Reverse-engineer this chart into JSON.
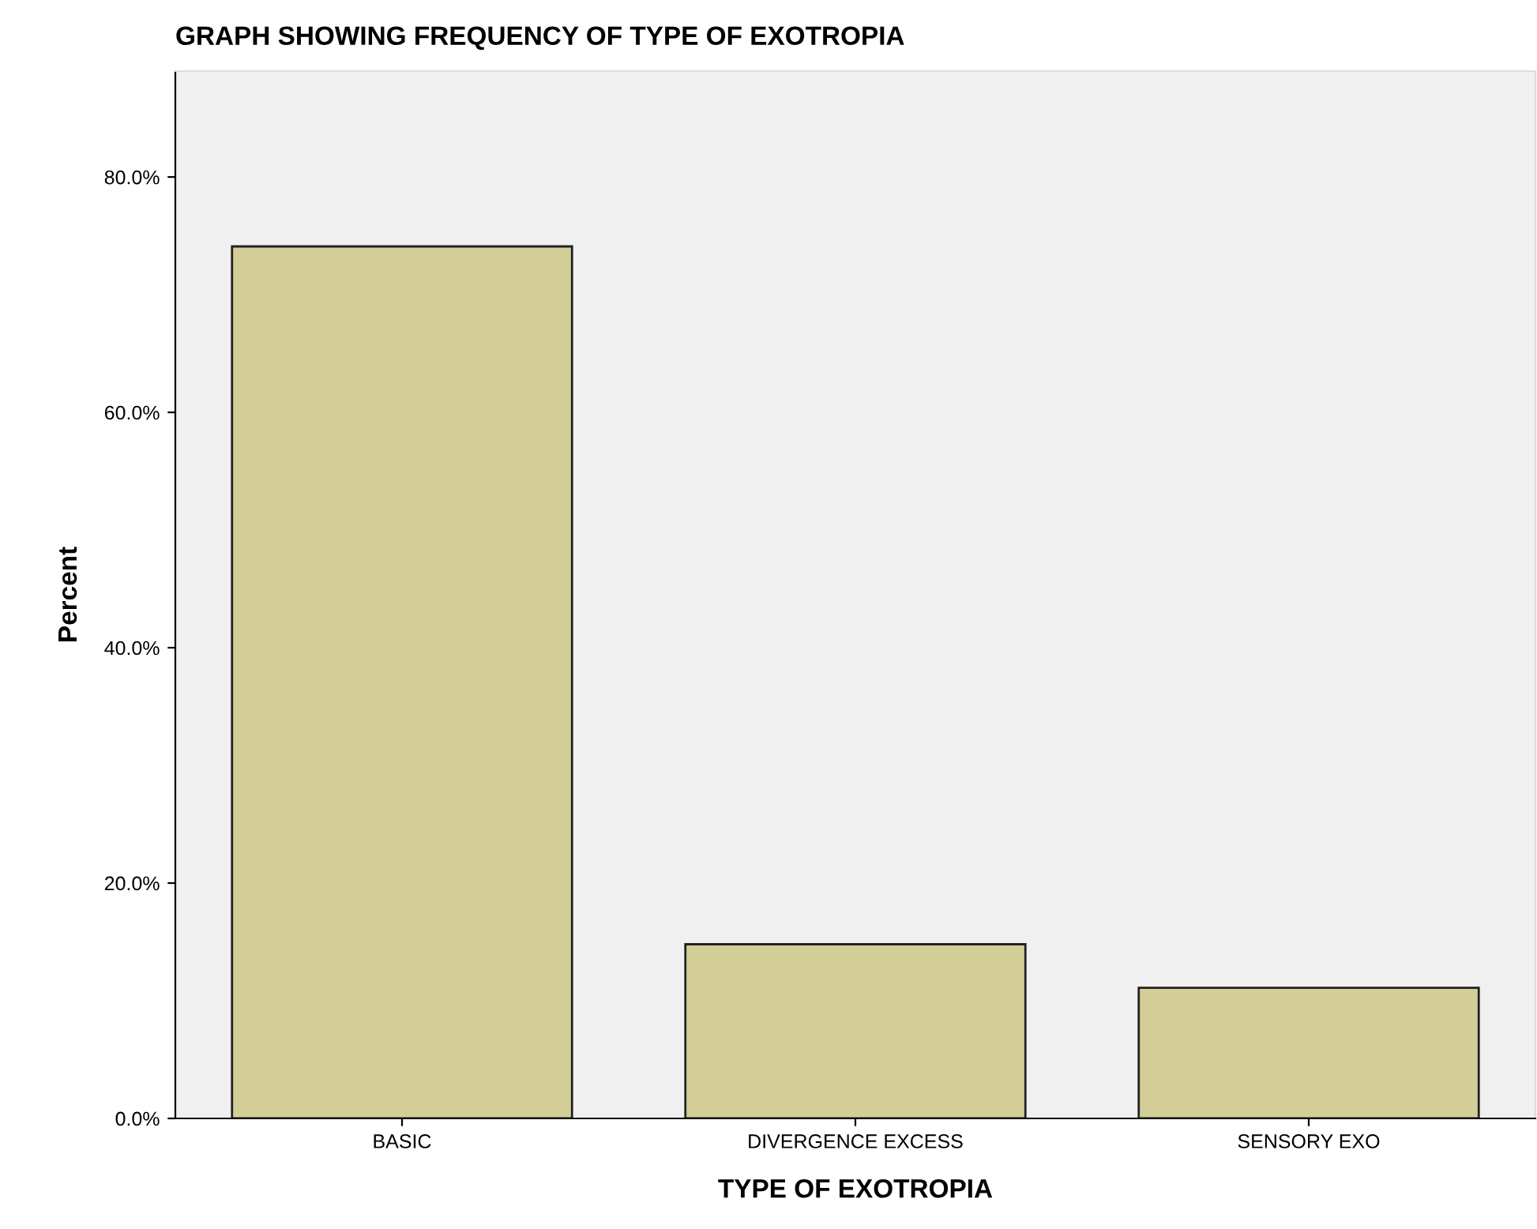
{
  "chart_data": {
    "type": "bar",
    "title": "GRAPH SHOWING FREQUENCY OF TYPE OF EXOTROPIA",
    "xlabel": "TYPE OF EXOTROPIA",
    "ylabel": "Percent",
    "categories": [
      "BASIC",
      "DIVERGENCE EXCESS",
      "SENSORY EXO"
    ],
    "values": [
      74.1,
      14.8,
      11.1
    ],
    "color": "#d3ce97",
    "ylim": [
      0,
      89
    ],
    "yticks": [
      {
        "value": 0,
        "label": "0.0%"
      },
      {
        "value": 20,
        "label": "20.0%"
      },
      {
        "value": 40,
        "label": "40.0%"
      },
      {
        "value": 60,
        "label": "60.0%"
      },
      {
        "value": 80,
        "label": "80.0%"
      }
    ],
    "grid": false
  }
}
